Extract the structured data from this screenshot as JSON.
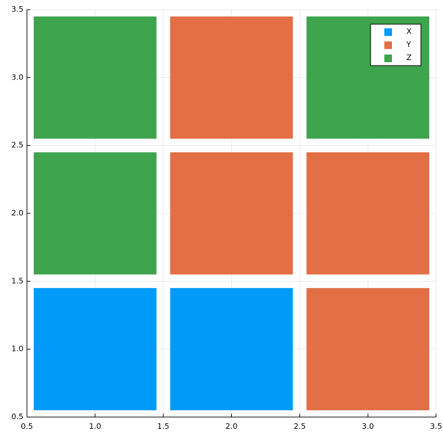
{
  "chart_data": {
    "type": "tile",
    "series": [
      {
        "name": "X",
        "color": "#009af9",
        "x": [
          1,
          2
        ],
        "y": [
          1,
          1
        ]
      },
      {
        "name": "Y",
        "color": "#e26f46",
        "x": [
          3,
          2,
          3,
          2
        ],
        "y": [
          1,
          2,
          2,
          3
        ]
      },
      {
        "name": "Z",
        "color": "#3ea44e",
        "x": [
          1,
          1,
          3
        ],
        "y": [
          2,
          3,
          3
        ]
      }
    ],
    "xlim": [
      0.5,
      3.5
    ],
    "ylim": [
      0.5,
      3.5
    ],
    "xticks": [
      0.5,
      {
        "value": 1,
        "label": "1.0"
      },
      1.5,
      {
        "value": 2,
        "label": "2.0"
      },
      2.5,
      {
        "value": 3,
        "label": "3.0"
      },
      3.5
    ],
    "yticks": [
      0.5,
      {
        "value": 1,
        "label": "1.0"
      },
      1.5,
      {
        "value": 2,
        "label": "2.0"
      },
      2.5,
      {
        "value": 3,
        "label": "3.0"
      },
      3.5
    ],
    "grid": true,
    "legend": "top-right"
  }
}
